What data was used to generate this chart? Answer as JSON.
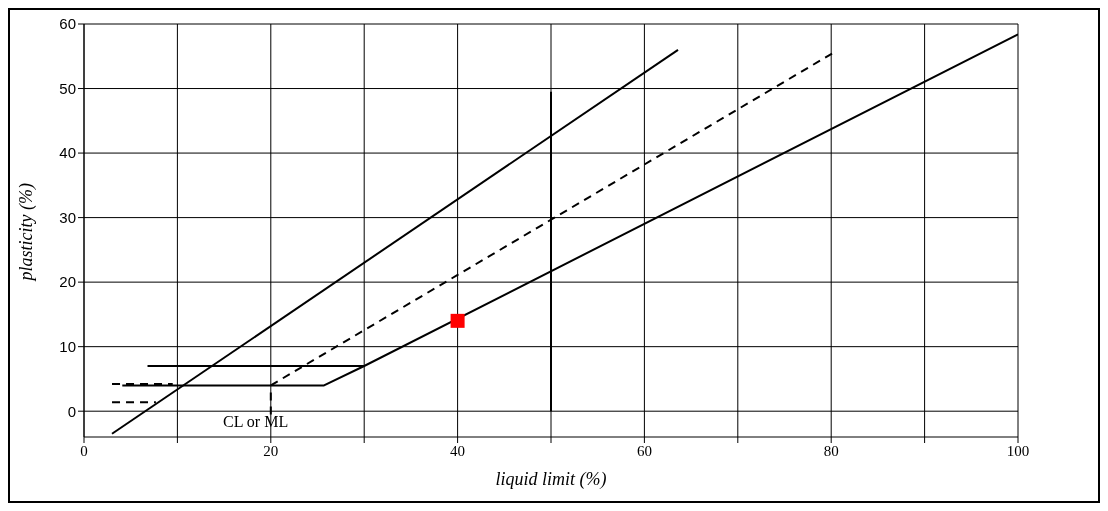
{
  "chart_data": {
    "type": "line",
    "xlabel": "liquid limit (%)",
    "ylabel": "plasticity (%)",
    "xlim": [
      0,
      100
    ],
    "ylim": [
      -4,
      60
    ],
    "xticks": [
      0,
      {
        "value": 10,
        "label": null
      },
      20,
      {
        "value": 30,
        "label": null
      },
      40,
      {
        "value": 50,
        "label": null
      },
      60,
      {
        "value": 70,
        "label": null
      },
      80,
      {
        "value": 90,
        "label": null
      },
      100
    ],
    "yticks": [
      0,
      10,
      20,
      30,
      40,
      50,
      60
    ],
    "grid": true,
    "marker": "none",
    "line_style": "solid",
    "series": [
      {
        "color": "#000000",
        "x": [
          3,
          63.6
        ],
        "values": [
          -3.5,
          56
        ]
      },
      {
        "color": "#000000",
        "x": [
          20,
          80.3
        ],
        "values": [
          4,
          55.6
        ],
        "line_style": "dashed"
      },
      {
        "color": "#000000",
        "x": [
          4.1,
          25.7,
          30,
          100
        ],
        "values": [
          4,
          4,
          7,
          58.4
        ]
      },
      {
        "color": "#000000",
        "x": [
          6.8,
          30
        ],
        "values": [
          7,
          7
        ]
      },
      {
        "color": "#000000",
        "x": [
          50,
          50
        ],
        "values": [
          0,
          49.5
        ]
      },
      {
        "color": "#000000",
        "x": [
          3,
          9.5
        ],
        "values": [
          4.2,
          4.2
        ],
        "line_style": "dashed"
      },
      {
        "color": "#000000",
        "x": [
          3,
          7.7
        ],
        "values": [
          1.4,
          1.4
        ],
        "line_style": "dashed"
      },
      {
        "color": "#000000",
        "x": [
          20,
          20
        ],
        "values": [
          -0.5,
          3.5
        ],
        "line_style": "dashed"
      },
      {
        "type": "scatter",
        "color": "#ff0000",
        "x": [
          40
        ],
        "values": [
          14
        ],
        "marker": "square"
      }
    ],
    "annotations": [
      "CL or ML"
    ]
  }
}
